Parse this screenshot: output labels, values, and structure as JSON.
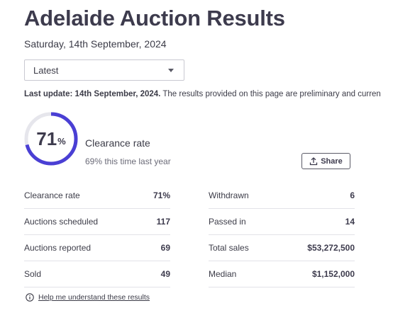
{
  "page": {
    "title": "Adelaide Auction Results",
    "date": "Saturday, 14th September, 2024"
  },
  "select": {
    "value": "Latest"
  },
  "update": {
    "bold": "Last update: 14th September, 2024.",
    "text": " The results provided on this page are preliminary and curren"
  },
  "clearance": {
    "value": "71",
    "percent_sign": "%",
    "fraction": 0.71,
    "label": "Clearance rate",
    "last_year": "69% this time last year",
    "accent_color": "#4a3fd4",
    "track_color": "#e6e6ec"
  },
  "share": {
    "label": "Share",
    "icon": "upload-icon"
  },
  "stats_left": [
    {
      "label": "Clearance rate",
      "value": "71%"
    },
    {
      "label": "Auctions scheduled",
      "value": "117"
    },
    {
      "label": "Auctions reported",
      "value": "69"
    },
    {
      "label": "Sold",
      "value": "49"
    }
  ],
  "stats_right": [
    {
      "label": "Withdrawn",
      "value": "6"
    },
    {
      "label": "Passed in",
      "value": "14"
    },
    {
      "label": "Total sales",
      "value": "$53,272,500"
    },
    {
      "label": "Median",
      "value": "$1,152,000"
    }
  ],
  "help": {
    "label": "Help me understand these results",
    "icon": "info-icon"
  }
}
